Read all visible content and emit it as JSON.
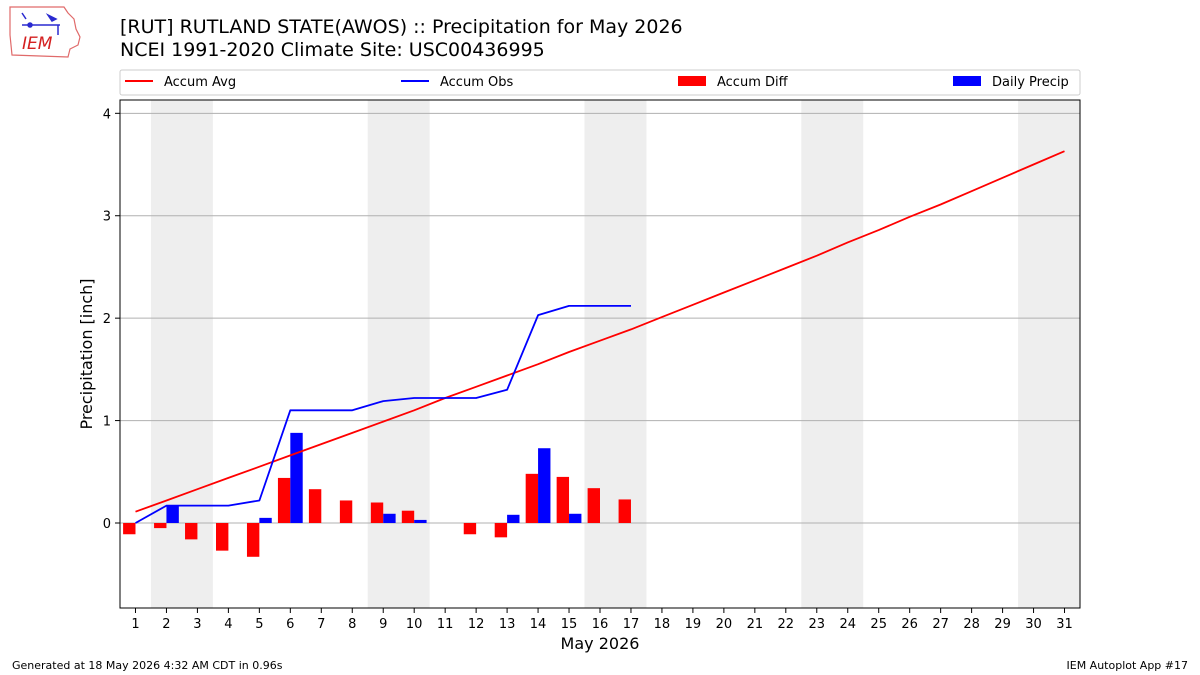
{
  "header": {
    "title_line1": "[RUT] RUTLAND STATE(AWOS) :: Precipitation for May 2026",
    "title_line2": "NCEI 1991-2020 Climate Site: USC00436995",
    "logo_text": "IEM"
  },
  "footer": {
    "generated": "Generated at 18 May 2026 4:32 AM CDT in 0.96s",
    "app": "IEM Autoplot App #17"
  },
  "colors": {
    "accum_avg": "#ff0000",
    "accum_obs": "#0000ff",
    "accum_diff": "#ff0000",
    "daily_precip": "#0000ff",
    "weekend_shade": "#eeeeee",
    "grid": "#b0b0b0"
  },
  "chart_data": {
    "type": "bar",
    "xlabel": "May 2026",
    "ylabel": "Precipitation [inch]",
    "ylim": [
      -0.83,
      4.13
    ],
    "xlim": [
      0.5,
      31.5
    ],
    "yticks": [
      0,
      1,
      2,
      3,
      4
    ],
    "grid": "horizontal",
    "legend_position": "top",
    "legend": [
      "Accum Avg",
      "Accum Obs",
      "Accum Diff",
      "Daily Precip"
    ],
    "weekend_shaded_days": [
      [
        2,
        3
      ],
      [
        9,
        10
      ],
      [
        16,
        17
      ],
      [
        23,
        24
      ],
      [
        30,
        31
      ]
    ],
    "days": [
      1,
      2,
      3,
      4,
      5,
      6,
      7,
      8,
      9,
      10,
      11,
      12,
      13,
      14,
      15,
      16,
      17,
      18,
      19,
      20,
      21,
      22,
      23,
      24,
      25,
      26,
      27,
      28,
      29,
      30,
      31
    ],
    "series": [
      {
        "name": "Accum Avg",
        "kind": "line",
        "x": [
          1,
          2,
          3,
          4,
          5,
          6,
          7,
          8,
          9,
          10,
          11,
          12,
          13,
          14,
          15,
          16,
          17,
          18,
          19,
          20,
          21,
          22,
          23,
          24,
          25,
          26,
          27,
          28,
          29,
          30,
          31
        ],
        "values": [
          0.11,
          0.22,
          0.33,
          0.44,
          0.55,
          0.66,
          0.77,
          0.88,
          0.99,
          1.1,
          1.22,
          1.33,
          1.44,
          1.55,
          1.67,
          1.78,
          1.89,
          2.01,
          2.13,
          2.25,
          2.37,
          2.49,
          2.61,
          2.74,
          2.86,
          2.99,
          3.11,
          3.24,
          3.37,
          3.5,
          3.63
        ]
      },
      {
        "name": "Accum Obs",
        "kind": "line",
        "x": [
          1,
          2,
          3,
          4,
          5,
          6,
          7,
          8,
          9,
          10,
          11,
          12,
          13,
          14,
          15,
          16,
          17
        ],
        "values": [
          0.0,
          0.17,
          0.17,
          0.17,
          0.22,
          1.1,
          1.1,
          1.1,
          1.19,
          1.22,
          1.22,
          1.22,
          1.3,
          2.03,
          2.12,
          2.12,
          2.12
        ]
      },
      {
        "name": "Accum Diff",
        "kind": "bar",
        "x": [
          1,
          2,
          3,
          4,
          5,
          6,
          7,
          8,
          9,
          10,
          11,
          12,
          13,
          14,
          15,
          16,
          17
        ],
        "values": [
          -0.11,
          -0.05,
          -0.16,
          -0.27,
          -0.33,
          0.44,
          0.33,
          0.22,
          0.2,
          0.12,
          0.0,
          -0.11,
          -0.14,
          0.48,
          0.45,
          0.34,
          0.23
        ]
      },
      {
        "name": "Daily Precip",
        "kind": "bar",
        "x": [
          1,
          2,
          3,
          4,
          5,
          6,
          7,
          8,
          9,
          10,
          11,
          12,
          13,
          14,
          15,
          16,
          17
        ],
        "values": [
          0.0,
          0.17,
          0.0,
          0.0,
          0.05,
          0.88,
          0.0,
          0.0,
          0.09,
          0.03,
          0.0,
          0.0,
          0.08,
          0.73,
          0.09,
          0.0,
          0.0
        ]
      }
    ]
  }
}
